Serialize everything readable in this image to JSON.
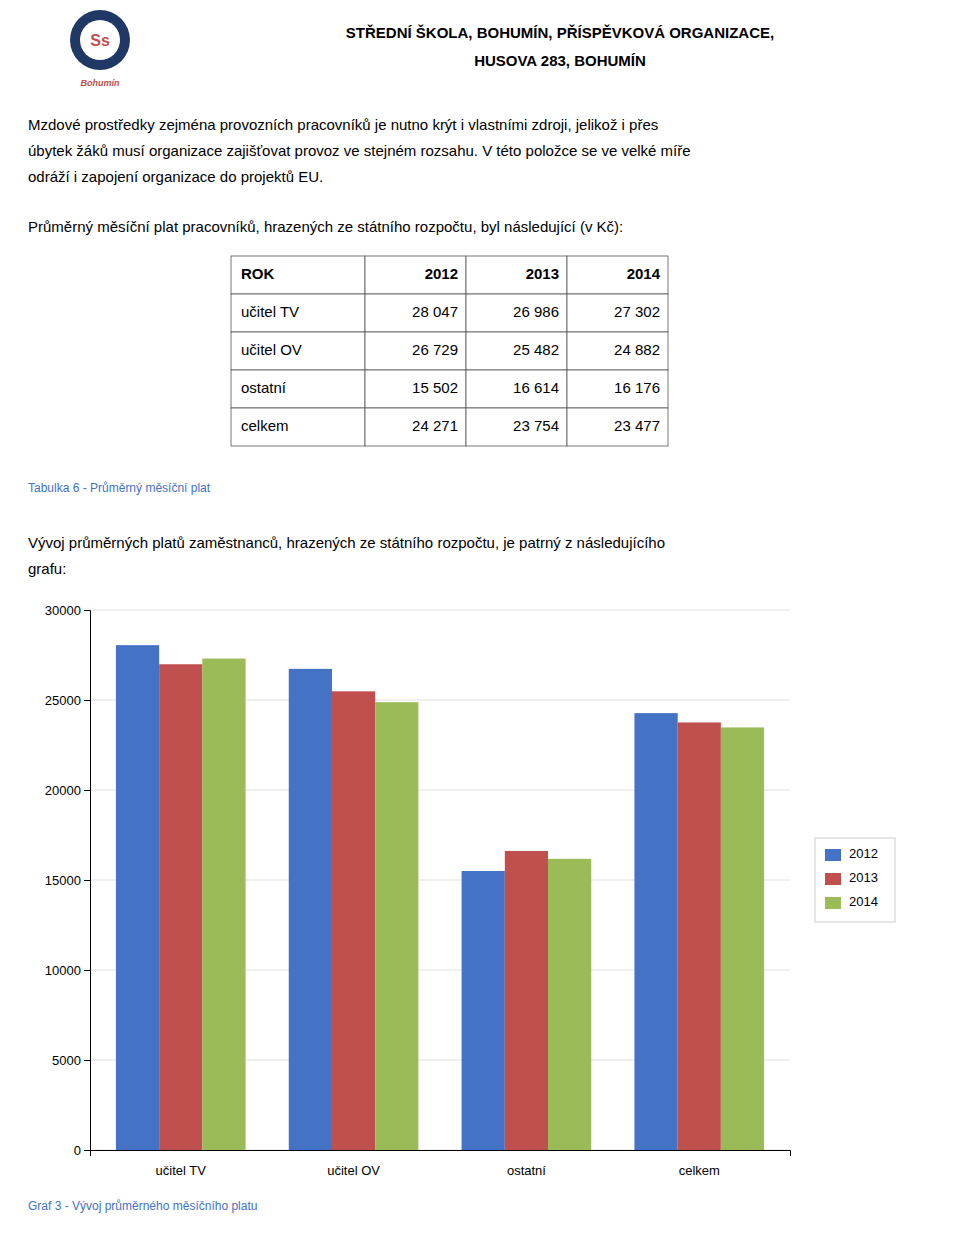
{
  "logo_text": [
    "Ss",
    "Bohumín"
  ],
  "header_lines": [
    "STŘEDNÍ ŠKOLA, BOHUMÍN, PŘÍSPĚVKOVÁ ORGANIZACE,",
    "HUSOVA 283, BOHUMÍN"
  ],
  "body_lines": [
    "Mzdové prostředky zejména provozních pracovníků je nutno krýt i vlastními zdroji, jelikož i přes",
    "úbytek žáků musí organizace zajišťovat provoz ve stejném rozsahu. V této položce se ve velké míře",
    "odráží i zapojení organizace do projektů EU."
  ],
  "table_intro": "Průměrný měsíční plat pracovníků, hrazených ze státního rozpočtu, byl následující (v Kč):",
  "table": {
    "headers": [
      "ROK",
      "2012",
      "2013",
      "2014"
    ],
    "rows": [
      [
        "učitel TV",
        "28 047",
        "26 986",
        "27 302"
      ],
      [
        "učitel OV",
        "26 729",
        "25 482",
        "24 882"
      ],
      [
        "ostatní",
        "15 502",
        "16 614",
        "16 176"
      ],
      [
        "celkem",
        "24 271",
        "23 754",
        "23 477"
      ]
    ]
  },
  "table_caption": "Tabulka 6 - Průměrný měsíční plat",
  "chart_intro_lines": [
    "Vývoj průměrných platů zaměstnanců, hrazených ze státního rozpočtu, je patrný z následujícího",
    "grafu:"
  ],
  "chart_caption": "Graf 3 - Vývoj průměrného měsíčního platu",
  "chart_data": {
    "type": "bar",
    "categories": [
      "učitel TV",
      "učitel OV",
      "ostatní",
      "celkem"
    ],
    "series": [
      {
        "name": "2012",
        "color": "#4472C4",
        "values": [
          28047,
          26729,
          15502,
          24271
        ]
      },
      {
        "name": "2013",
        "color": "#C0504D",
        "values": [
          26986,
          25482,
          16614,
          23754
        ]
      },
      {
        "name": "2014",
        "color": "#9BBB59",
        "values": [
          27302,
          24882,
          16176,
          23477
        ]
      }
    ],
    "ylim": [
      0,
      30000
    ],
    "yticks": [
      0,
      5000,
      10000,
      15000,
      20000,
      25000,
      30000
    ],
    "grid": true,
    "legend": "right"
  }
}
